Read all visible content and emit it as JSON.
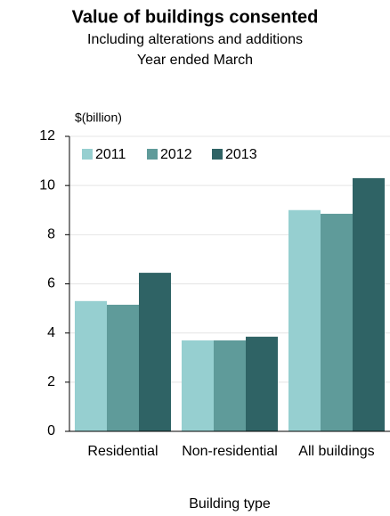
{
  "chart_data": {
    "type": "bar",
    "title": "Value of buildings consented",
    "subtitle": "Including alterations and additions",
    "subtitle2": "Year ended March",
    "y_label": "$(billion)",
    "x_label": "Building type",
    "categories": [
      "Residential",
      "Non-residential",
      "All buildings"
    ],
    "series": [
      {
        "name": "2011",
        "color": "#96cfd0",
        "values": [
          5.3,
          3.7,
          9.0
        ]
      },
      {
        "name": "2012",
        "color": "#5f9b9a",
        "values": [
          5.15,
          3.7,
          8.85
        ]
      },
      {
        "name": "2013",
        "color": "#2f6365",
        "values": [
          6.45,
          3.85,
          10.3
        ]
      }
    ],
    "ylim": [
      0,
      12
    ],
    "yticks": [
      0,
      2,
      4,
      6,
      8,
      10,
      12
    ],
    "grid": true,
    "legend": "top-left"
  }
}
